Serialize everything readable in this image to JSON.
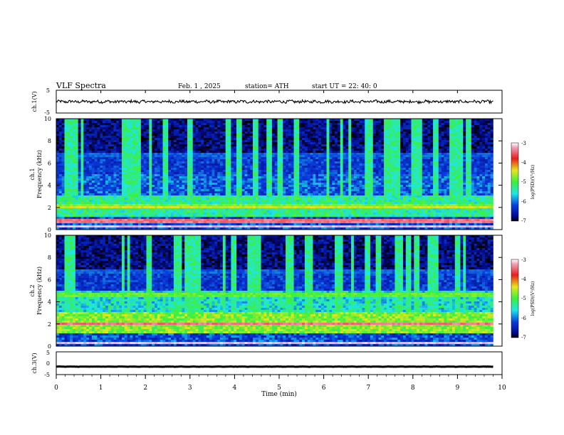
{
  "header": {
    "title": "VLF  Spectra",
    "date": "Feb. 1  , 2025",
    "station": "station= ATH",
    "start": "start  UT  =    22: 40: 0"
  },
  "colors": {
    "black": "#000000",
    "darkblue": "#000a8c",
    "blue": "#0a3cdc",
    "cyan": "#1ee6e6",
    "green": "#3cf03c",
    "yellow": "#e6e61e",
    "red": "#e61e1e",
    "pink": "#f0a0b4"
  },
  "chart_data": [
    {
      "type": "line",
      "name": "ch1-waveform",
      "ylabel": "ch.1(V)",
      "ylim": [
        -5,
        5
      ],
      "yticks": [
        "5",
        "-5"
      ],
      "xlim": [
        0,
        10
      ],
      "baseline": 0,
      "amplitude": 0.6
    },
    {
      "type": "heatmap",
      "name": "ch1-spectrogram",
      "ylabel": "ch.1\nFrequency (kHz)",
      "ylabel_line1": "ch.1",
      "ylabel_line2": "Frequency (kHz)",
      "ylim": [
        0,
        10
      ],
      "yticks": [
        "0",
        "2",
        "4",
        "6",
        "8",
        "10"
      ],
      "xlim": [
        0,
        9.8
      ],
      "colorbar": {
        "label": "log(PSD)(V²/Hz)",
        "ticks": [
          "-3",
          "-4",
          "-5",
          "-6",
          "-7"
        ],
        "range": [
          -7,
          -3
        ]
      },
      "bands": [
        {
          "f": 0.3,
          "level": -3.3
        },
        {
          "f": 0.8,
          "level": -3.6
        },
        {
          "f": 2.0,
          "level": -4.6
        },
        {
          "f": 2.2,
          "level": -4.8
        },
        {
          "f": 6.8,
          "level": -5.9
        }
      ]
    },
    {
      "type": "heatmap",
      "name": "ch2-spectrogram",
      "ylabel": "ch.2\nFrequency (kHz)",
      "ylabel_line1": "ch.2",
      "ylabel_line2": "Frequency (kHz)",
      "ylim": [
        0,
        10
      ],
      "yticks": [
        "0",
        "2",
        "4",
        "6",
        "8",
        "10"
      ],
      "xlim": [
        0,
        9.8
      ],
      "colorbar": {
        "label": "log(PSD)(V²/Hz)",
        "ticks": [
          "-3",
          "-4",
          "-5",
          "-6",
          "-7"
        ],
        "range": [
          -7,
          -3
        ]
      },
      "bands": [
        {
          "f": 0.3,
          "level": -3.3
        },
        {
          "f": 2.0,
          "level": -3.6
        },
        {
          "f": 4.6,
          "level": -4.9
        },
        {
          "f": 6.8,
          "level": -5.9
        }
      ]
    },
    {
      "type": "line",
      "name": "ch3-waveform",
      "ylabel": "ch.3(V)",
      "ylim": [
        -5,
        5
      ],
      "yticks": [
        "5",
        "0",
        "-5"
      ],
      "xlim": [
        0,
        10
      ],
      "baseline": -1.5,
      "amplitude": 0.15
    }
  ],
  "xaxis": {
    "label": "Time  (min)",
    "ticks": [
      "0",
      "1",
      "2",
      "3",
      "4",
      "5",
      "6",
      "7",
      "8",
      "9",
      "10"
    ],
    "range": [
      0,
      10
    ]
  }
}
